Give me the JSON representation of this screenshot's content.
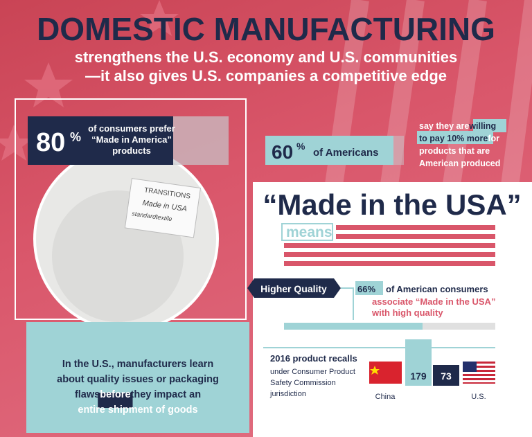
{
  "header": {
    "title": "DOMESTIC MANUFACTURING",
    "subtitle_lines": [
      "strengthens the U.S. economy and U.S. communities",
      "—it also gives U.S. companies a competitive edge"
    ]
  },
  "consumers": {
    "number": "80",
    "unit": "%",
    "lines": [
      "of consumers prefer",
      "“Made in America”",
      "products"
    ]
  },
  "label_tag": {
    "lines": [
      "TRANSITIONS",
      "Made in USA",
      "standardtextile"
    ]
  },
  "americans": {
    "number": "60",
    "unit": "%",
    "text": "of Americans",
    "lines": [
      [
        "say they are ",
        "willing"
      ],
      [
        "to pay 10% more",
        " for"
      ],
      [
        "products that are"
      ],
      [
        "American produced"
      ]
    ]
  },
  "made_in_usa": {
    "title": "“Made in the USA”",
    "means": "means"
  },
  "quality": {
    "label": "Higher Quality",
    "stat": "66%",
    "lines": [
      "of American consumers",
      "associate “Made in the USA”",
      "with high quality"
    ]
  },
  "recalls": {
    "title": "2016 product recalls",
    "lines": [
      "under Consumer Product",
      "Safety Commission",
      "jurisdiction"
    ],
    "china_label": "China",
    "china_value": "179",
    "us_label": "U.S.",
    "us_value": "73"
  },
  "learn": {
    "lines": [
      [
        "In the U.S., manufacturers learn"
      ],
      [
        "about quality issues or packaging"
      ],
      [
        "flaws ",
        "before",
        " they impact an"
      ],
      [
        "entire shipment of goods"
      ]
    ]
  }
}
